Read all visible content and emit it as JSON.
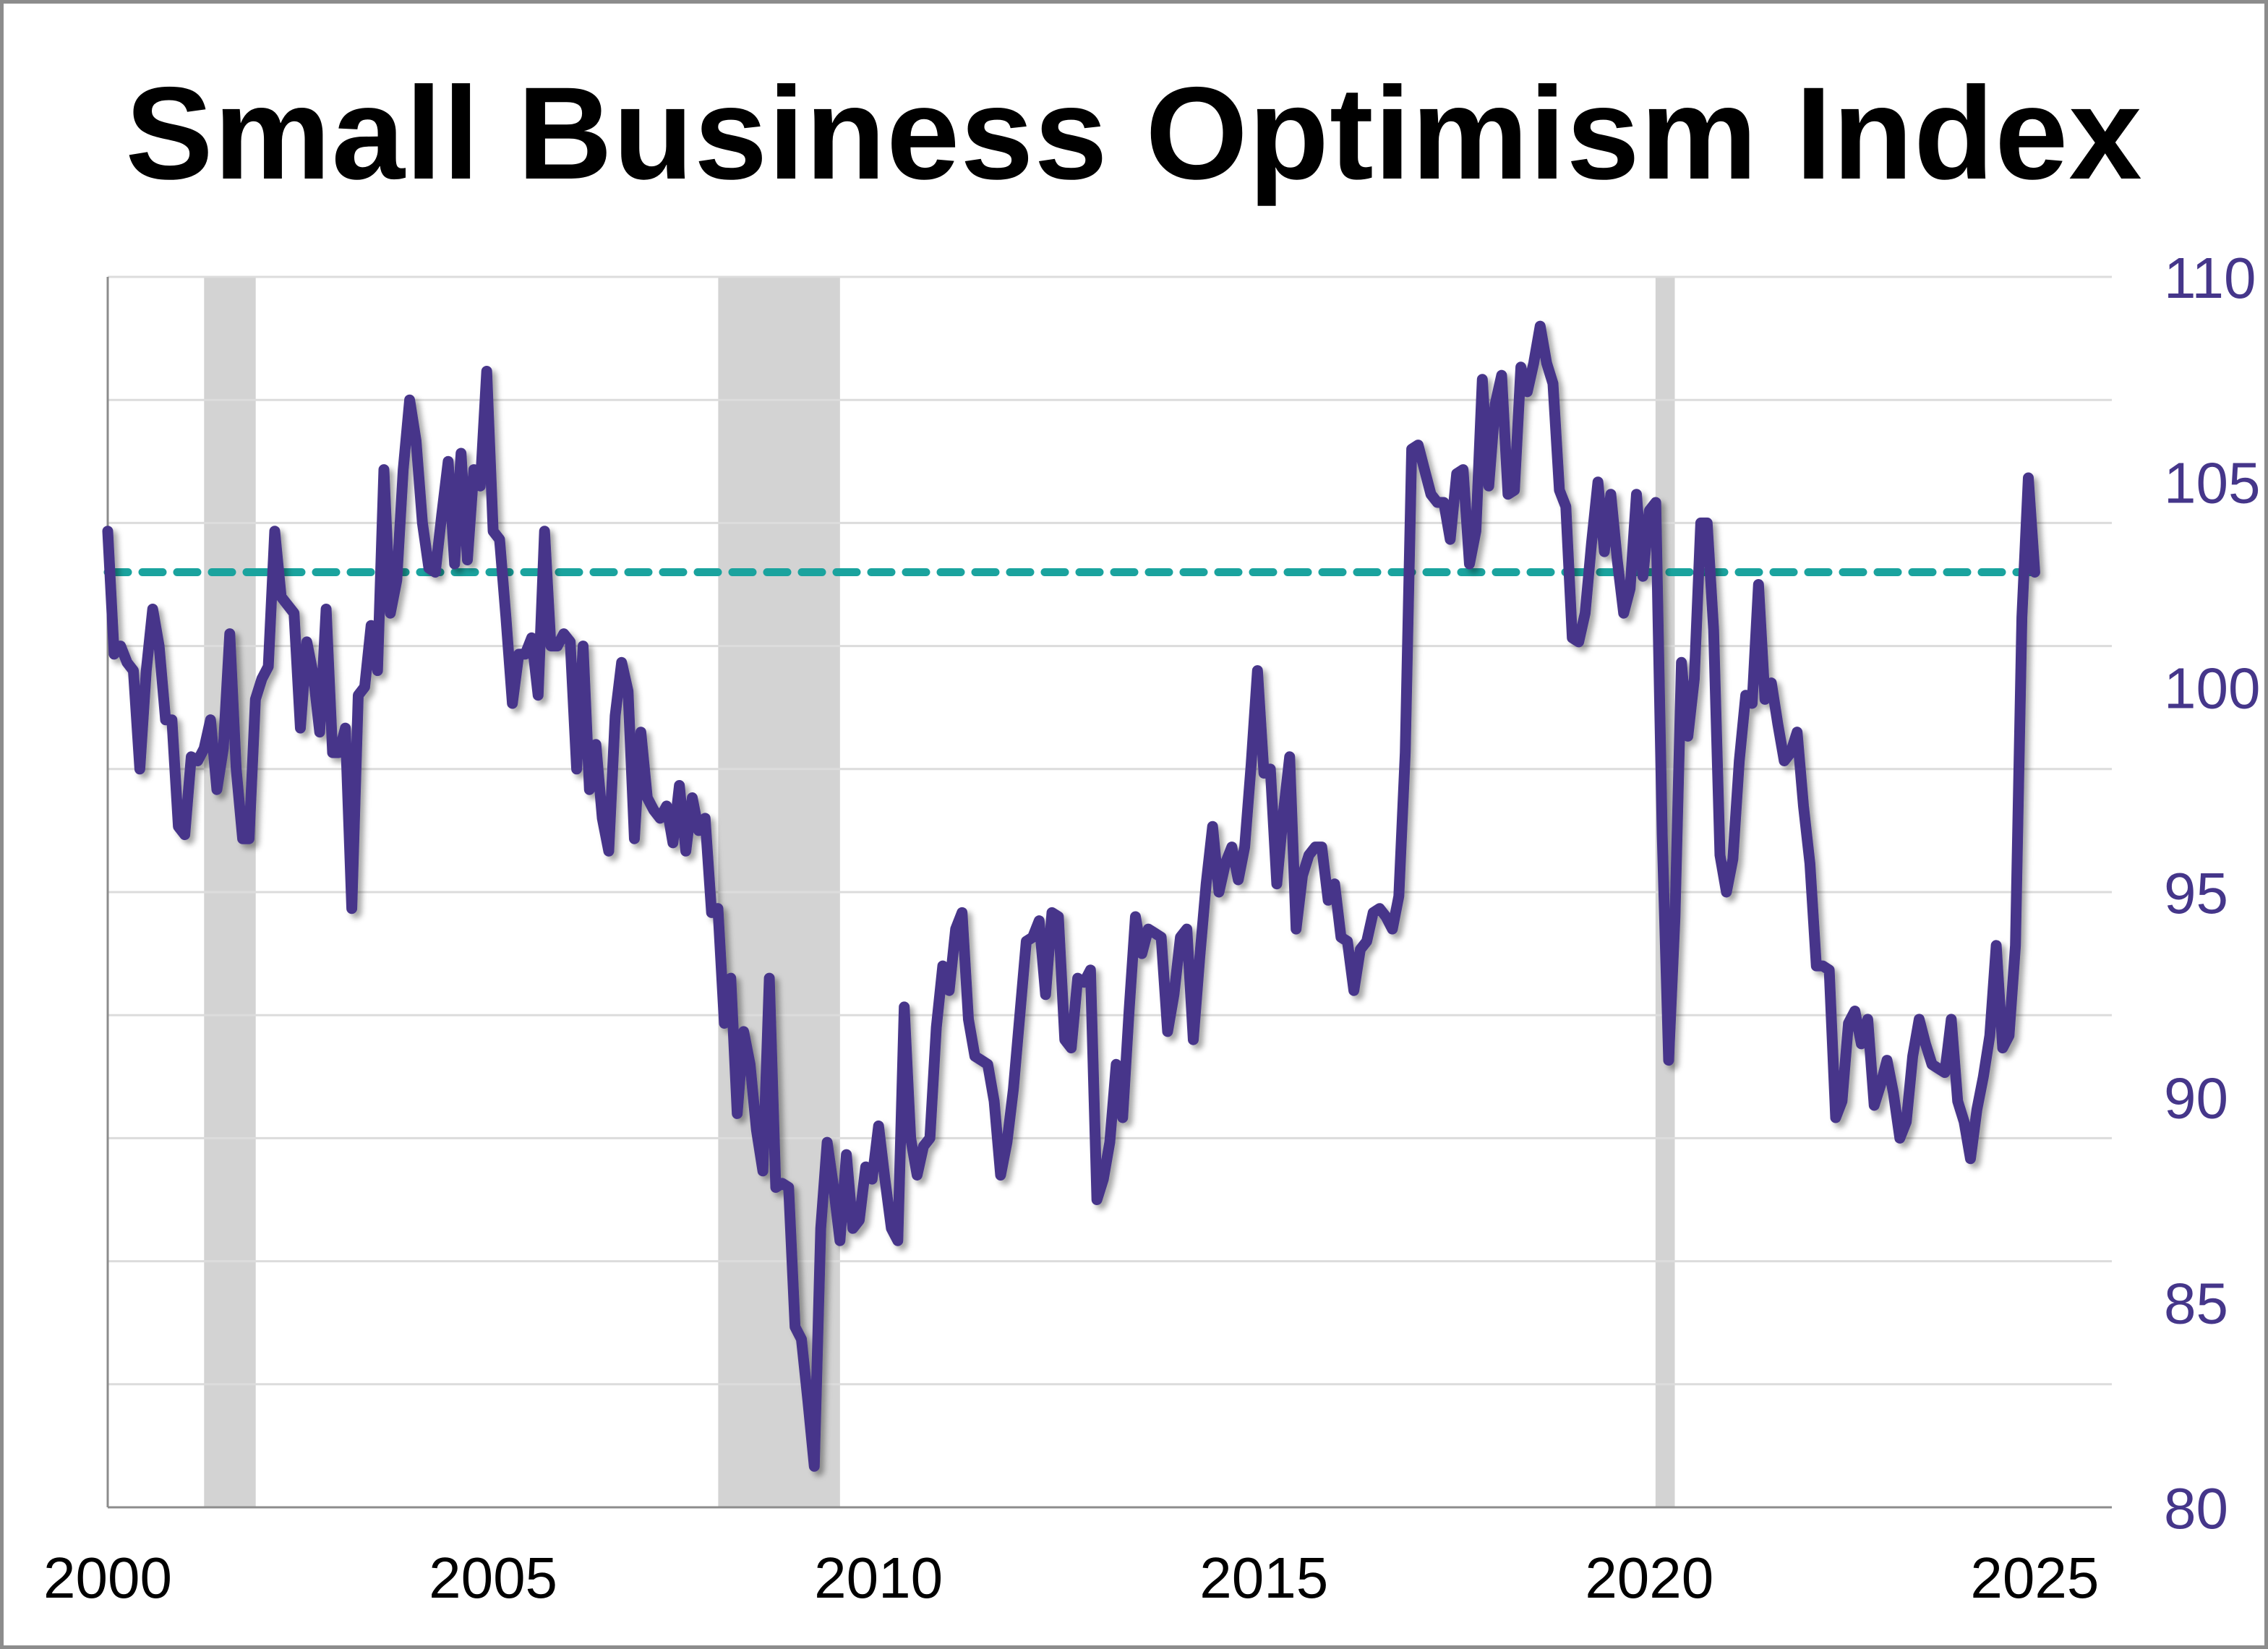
{
  "chart_data": {
    "type": "line",
    "title": "Small Business Optimism Index",
    "xlabel": "",
    "ylabel": "",
    "x_start": "2000-01",
    "frequency": "monthly",
    "xlim": [
      2000,
      2026
    ],
    "ylim": [
      80,
      110
    ],
    "y_axis_side": "right",
    "x_ticks": [
      "2000",
      "2005",
      "2010",
      "2015",
      "2020",
      "2025"
    ],
    "y_ticks": [
      "80",
      "85",
      "90",
      "95",
      "100",
      "105",
      "110"
    ],
    "grid": true,
    "legend": "none",
    "recession_shading": [
      [
        2001.25,
        2001.92
      ],
      [
        2007.92,
        2009.5
      ],
      [
        2020.08,
        2020.33
      ]
    ],
    "reference_line": {
      "value": 102.8,
      "style": "dashed"
    },
    "colors": {
      "line": "#46368a",
      "reference": "#1aa39e",
      "recession": "#d3d3d3",
      "ytick": "#45368a",
      "grid": "#dcdcdc"
    },
    "values": [
      103.8,
      100.8,
      101.0,
      100.6,
      100.4,
      98.0,
      100.4,
      101.9,
      101.0,
      99.2,
      99.2,
      96.6,
      96.4,
      98.3,
      98.2,
      98.5,
      99.2,
      97.5,
      98.5,
      101.3,
      98.0,
      96.3,
      96.3,
      99.7,
      100.2,
      100.5,
      103.8,
      102.2,
      102.0,
      101.8,
      99.0,
      101.1,
      100.3,
      98.9,
      101.9,
      98.4,
      98.4,
      99.0,
      94.6,
      99.8,
      100.0,
      101.5,
      100.4,
      105.3,
      101.8,
      102.6,
      105.3,
      107.0,
      106.0,
      104.0,
      102.9,
      102.8,
      104.2,
      105.5,
      103.0,
      105.7,
      103.1,
      105.3,
      104.9,
      107.7,
      103.8,
      103.6,
      101.7,
      99.6,
      100.8,
      100.8,
      101.2,
      99.8,
      103.8,
      101.0,
      101.0,
      101.3,
      101.1,
      98.0,
      101.0,
      97.5,
      98.6,
      96.8,
      96.0,
      99.3,
      100.6,
      99.9,
      96.3,
      98.9,
      97.3,
      97.0,
      96.8,
      97.1,
      96.2,
      97.6,
      96.0,
      97.3,
      96.5,
      96.8,
      94.5,
      94.6,
      91.8,
      92.9,
      89.6,
      91.6,
      90.8,
      89.2,
      88.2,
      92.9,
      87.8,
      87.9,
      87.8,
      84.4,
      84.1,
      82.6,
      81.0,
      86.8,
      88.9,
      87.8,
      86.5,
      88.6,
      86.8,
      87.0,
      88.3,
      88.0,
      89.3,
      88.0,
      86.8,
      86.5,
      92.2,
      89.0,
      88.1,
      88.8,
      89.0,
      91.7,
      93.2,
      92.6,
      94.1,
      94.5,
      91.9,
      91.0,
      90.9,
      90.8,
      89.9,
      88.1,
      88.9,
      90.2,
      92.0,
      93.8,
      93.9,
      94.3,
      92.5,
      94.5,
      94.4,
      91.4,
      91.2,
      92.9,
      92.8,
      93.1,
      87.5,
      88.0,
      88.9,
      90.8,
      89.5,
      92.1,
      94.4,
      93.5,
      94.1,
      94.0,
      93.9,
      91.6,
      92.5,
      93.9,
      94.1,
      91.4,
      93.4,
      95.2,
      96.6,
      95.0,
      95.7,
      96.1,
      95.3,
      96.1,
      98.1,
      100.4,
      97.9,
      98.0,
      95.2,
      96.9,
      98.3,
      94.1,
      95.4,
      95.9,
      96.1,
      96.1,
      94.8,
      95.2,
      93.9,
      93.8,
      92.6,
      93.6,
      93.8,
      94.5,
      94.6,
      94.4,
      94.1,
      94.9,
      98.4,
      105.8,
      105.9,
      105.3,
      104.7,
      104.5,
      104.5,
      103.6,
      105.2,
      105.3,
      103.0,
      103.8,
      107.5,
      104.9,
      106.9,
      107.6,
      104.7,
      104.8,
      107.8,
      107.2,
      107.9,
      108.8,
      107.9,
      107.4,
      104.8,
      104.4,
      101.2,
      101.1,
      101.8,
      103.5,
      105.0,
      103.3,
      104.7,
      103.1,
      101.8,
      102.4,
      104.7,
      102.7,
      104.3,
      104.5,
      96.4,
      90.9,
      94.4,
      100.6,
      98.8,
      100.2,
      104.0,
      104.0,
      101.4,
      95.9,
      95.0,
      95.8,
      98.2,
      99.8,
      99.6,
      102.5,
      99.7,
      100.1,
      99.1,
      98.2,
      98.4,
      98.9,
      97.1,
      95.7,
      93.2,
      93.2,
      93.1,
      89.5,
      89.9,
      91.8,
      92.1,
      91.3,
      91.9,
      89.8,
      90.3,
      90.9,
      90.1,
      89.0,
      89.4,
      91.0,
      91.9,
      91.3,
      90.8,
      90.7,
      90.6,
      91.9,
      89.9,
      89.4,
      88.5,
      89.7,
      90.5,
      91.5,
      93.7,
      91.2,
      91.5,
      93.7,
      101.7,
      105.1,
      102.8
    ]
  }
}
